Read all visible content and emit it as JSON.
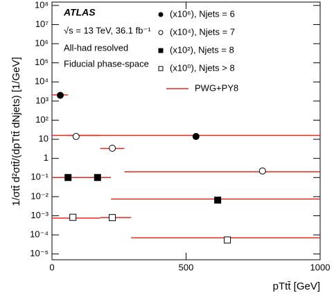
{
  "chart_data": {
    "type": "binned-points",
    "y_label": "1/σtt̄ d²σtt̄/(dpTtt̄ dNjets) [1/GeV]",
    "x_label": "pTtt̄ [GeV]",
    "annotations": [
      "ATLAS",
      "√s = 13 TeV, 36.1 fb⁻¹",
      "All-had resolved",
      "Fiducial phase-space"
    ],
    "log_y": true,
    "xlim": [
      0,
      1000
    ],
    "xticks": [
      0,
      500,
      1000
    ],
    "ylim": [
      5e-06,
      150000000.0
    ],
    "yticks": [
      {
        "value": 1e-05,
        "label": "10⁻⁵"
      },
      {
        "value": 0.0001,
        "label": "10⁻⁴"
      },
      {
        "value": 0.001,
        "label": "10⁻³"
      },
      {
        "value": 0.01,
        "label": "10⁻²"
      },
      {
        "value": 0.1,
        "label": "10⁻¹"
      },
      1,
      10,
      {
        "value": 100,
        "label": "10²"
      },
      {
        "value": 1000,
        "label": "10³"
      },
      {
        "value": 10000,
        "label": "10⁴"
      },
      {
        "value": 100000,
        "label": "10⁵"
      },
      {
        "value": 1000000,
        "label": "10⁶"
      },
      {
        "value": 10000000,
        "label": "10⁷"
      },
      {
        "value": 100000000,
        "label": "10⁸"
      }
    ],
    "prediction_name": "PWG+PY8",
    "prediction_color": "#e8261e",
    "series": [
      {
        "name": "(x10⁶), Njets = 6",
        "marker": "filled-circle",
        "x": [
          31,
          537
        ],
        "values": [
          2000,
          14
        ],
        "bins": [
          0,
          60,
          1000
        ],
        "prediction": [
          2100,
          16
        ]
      },
      {
        "name": "(x10⁴), Njets = 7",
        "marker": "open-circle",
        "x": [
          90,
          225,
          785
        ],
        "values": [
          14,
          3.4,
          0.22
        ],
        "bins": [
          0,
          180,
          270,
          1000
        ],
        "prediction": [
          16,
          3.3,
          0.2
        ]
      },
      {
        "name": "(x10²), Njets = 8",
        "marker": "filled-square",
        "x": [
          60,
          170,
          618
        ],
        "values": [
          0.1,
          0.1,
          0.0066
        ],
        "bins": [
          0,
          115,
          220,
          1000
        ],
        "prediction": [
          0.1,
          0.1,
          0.0075
        ]
      },
      {
        "name": "(x10⁰), Njets > 8",
        "marker": "open-square",
        "x": [
          78,
          225,
          654
        ],
        "values": [
          0.00083,
          0.0008,
          5.4e-05
        ],
        "bins": [
          0,
          180,
          295,
          1000
        ],
        "prediction": [
          0.00075,
          0.0008,
          7e-05
        ]
      }
    ]
  }
}
